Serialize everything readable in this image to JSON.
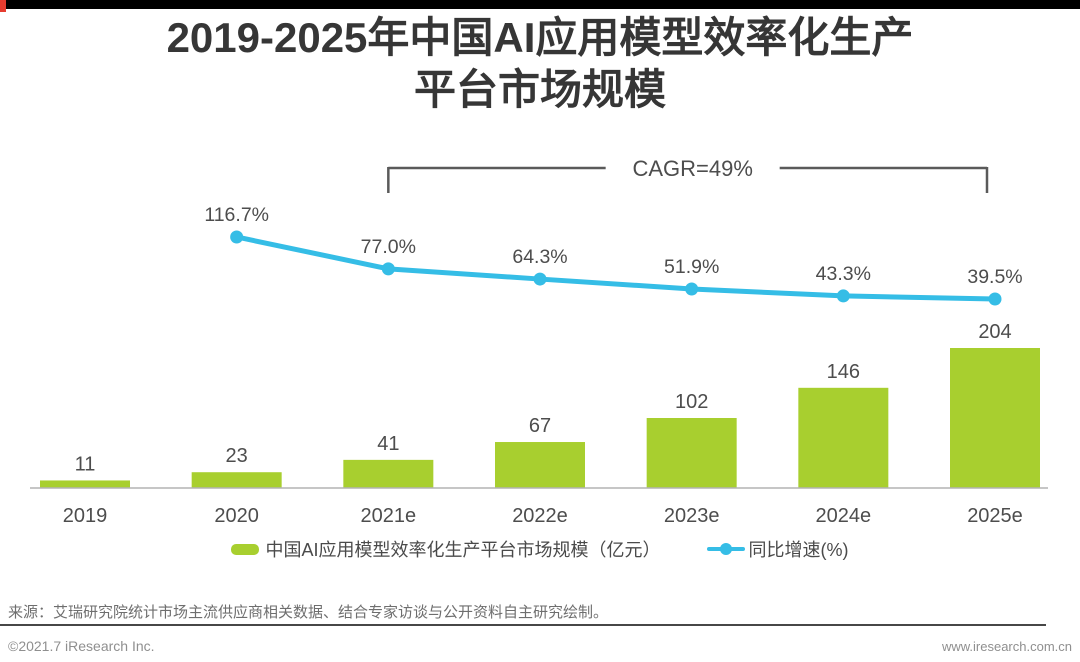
{
  "page": {
    "title_line1": "2019-2025年中国AI应用模型效率化生产",
    "title_line2": "平台市场规模",
    "source": "来源：艾瑞研究院统计市场主流供应商相关数据、结合专家访谈与公开资料自主研究绘制。",
    "footer_left": "©2021.7 iResearch Inc.",
    "footer_right": "www.iresearch.com.cn"
  },
  "legend": {
    "bar_label": "中国AI应用模型效率化生产平台市场规模（亿元）",
    "line_label": "同比增速(%)"
  },
  "colors": {
    "bar": "#a8cf2f",
    "line": "#35bde6",
    "text_dark": "#4d4d4d",
    "axis_line": "#b3b3b3",
    "bracket": "#5a5a5a",
    "header_bar": "#000000",
    "corner_red": "#e63c2f"
  },
  "chart_data": {
    "type": "bar",
    "title": "2019-2025年中国AI应用模型效率化生产平台市场规模",
    "categories": [
      "2019",
      "2020",
      "2021e",
      "2022e",
      "2023e",
      "2024e",
      "2025e"
    ],
    "series": [
      {
        "name": "中国AI应用模型效率化生产平台市场规模（亿元）",
        "type": "bar",
        "values": [
          11,
          23,
          41,
          67,
          102,
          146,
          204
        ]
      },
      {
        "name": "同比增速(%)",
        "type": "line",
        "values": [
          null,
          116.7,
          77.0,
          64.3,
          51.9,
          43.3,
          39.5
        ]
      }
    ],
    "annotation": {
      "label": "CAGR=49%",
      "from_category": "2021e",
      "to_category": "2025e"
    },
    "xlabel": "",
    "ylabel": "",
    "grid": false,
    "legend_position": "bottom"
  }
}
